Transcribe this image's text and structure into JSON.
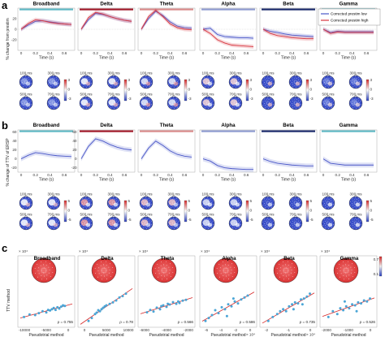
{
  "panel_labels": [
    "a",
    "b",
    "c"
  ],
  "band_titles": [
    "Broadband",
    "Delta",
    "Theta",
    "Alpha",
    "Beta",
    "Gamma"
  ],
  "band_colors": {
    "Broadband": "#5fb8c4",
    "Delta": "#a11a2a",
    "Theta": "#d98a8a",
    "Alpha": "#8e9bd0",
    "Beta": "#1b2a6b",
    "Gamma": "#5fb8c4"
  },
  "colors": {
    "blue": "#4a57c8",
    "red": "#d8363f",
    "dot": "#4aa5d6",
    "fit": "#d62828"
  },
  "row_a": {
    "ylabel": "% change from prestim",
    "xlabel": "Time (s)",
    "legend": [
      "Corrected prestim low",
      "Corrected prestim high"
    ],
    "yticks": [
      "20",
      "0",
      "-20"
    ],
    "xticks": [
      "0",
      "0.2",
      "0.4",
      "0.6"
    ],
    "topo_times": [
      "100 ms",
      "300 ms",
      "500 ms",
      "700 ms"
    ],
    "colorbar_ticks": [
      "3",
      "0",
      "-3"
    ]
  },
  "row_b": {
    "ylabel": "% change of TTV of ERSP",
    "xlabel": "Time (s)",
    "yticks": [
      "60",
      "40",
      "20",
      "0",
      "-20"
    ],
    "xticks": [
      "0",
      "0.2",
      "0.4",
      "0.6"
    ],
    "topo_times": [
      "100 ms",
      "300 ms",
      "500 ms",
      "700 ms"
    ],
    "colorbar_ticks": [
      "5",
      "0",
      "-5"
    ]
  },
  "row_c": {
    "ylabel": "TTV method",
    "xlabel": "Pseudotrial method",
    "colorbar_ticks": [
      "0.7",
      "0.1"
    ],
    "panels": [
      {
        "exp": "× 10⁴",
        "rho": "ρ = 0.755",
        "xticks": [
          "-10000",
          "-5000",
          "0"
        ],
        "xexp": ""
      },
      {
        "exp": "× 10⁴",
        "rho": "ρ = 0.78",
        "xticks": [
          "0",
          "5000",
          "10000"
        ],
        "xexp": ""
      },
      {
        "exp": "× 10⁴",
        "rho": "ρ = 0.566",
        "xticks": [
          "-6000",
          "-4000",
          "-2000"
        ],
        "xexp": ""
      },
      {
        "exp": "× 10⁴",
        "rho": "ρ = 0.586",
        "xticks": [
          "-6",
          "-4",
          "-2",
          "0"
        ],
        "xexp": "× 10⁴"
      },
      {
        "exp": "× 10⁴",
        "rho": "ρ = 0.735",
        "xticks": [
          "-2",
          "-1",
          "0"
        ],
        "xexp": "× 10⁴"
      },
      {
        "exp": "× 10⁴",
        "rho": "ρ = 0.526",
        "xticks": [
          "-2000",
          "-1000",
          "0"
        ],
        "xexp": ""
      }
    ]
  },
  "chart_data": [
    {
      "type": "line",
      "panel": "a",
      "x": [
        0,
        0.1,
        0.2,
        0.3,
        0.4,
        0.5,
        0.6,
        0.7
      ],
      "series": [
        {
          "name": "Corrected prestim low",
          "band": "Broadband",
          "values": [
            0,
            8,
            15,
            16,
            14,
            12,
            10,
            9
          ]
        },
        {
          "name": "Corrected prestim high",
          "band": "Broadband",
          "values": [
            0,
            11,
            18,
            16,
            13,
            11,
            10,
            9
          ]
        },
        {
          "name": "Corrected prestim low",
          "band": "Delta",
          "values": [
            0,
            18,
            30,
            28,
            24,
            20,
            17,
            15
          ]
        },
        {
          "name": "Corrected prestim high",
          "band": "Delta",
          "values": [
            0,
            22,
            32,
            29,
            24,
            20,
            17,
            15
          ]
        },
        {
          "name": "Corrected prestim low",
          "band": "Theta",
          "values": [
            0,
            20,
            34,
            26,
            14,
            6,
            3,
            2
          ]
        },
        {
          "name": "Corrected prestim high",
          "band": "Theta",
          "values": [
            0,
            24,
            36,
            24,
            10,
            3,
            0,
            -1
          ]
        },
        {
          "name": "Corrected prestim low",
          "band": "Alpha",
          "values": [
            0,
            2,
            -10,
            -14,
            -15,
            -16,
            -16,
            -17
          ]
        },
        {
          "name": "Corrected prestim high",
          "band": "Alpha",
          "values": [
            0,
            -8,
            -20,
            -26,
            -30,
            -31,
            -32,
            -33
          ]
        },
        {
          "name": "Corrected prestim low",
          "band": "Beta",
          "values": [
            0,
            -4,
            -6,
            -9,
            -11,
            -12,
            -13,
            -14
          ]
        },
        {
          "name": "Corrected prestim high",
          "band": "Beta",
          "values": [
            0,
            -8,
            -12,
            -14,
            -16,
            -17,
            -18,
            -18
          ]
        },
        {
          "name": "Corrected prestim low",
          "band": "Gamma",
          "values": [
            0,
            -6,
            -4,
            -5,
            -5,
            -5,
            -5,
            -5
          ]
        },
        {
          "name": "Corrected prestim high",
          "band": "Gamma",
          "values": [
            0,
            -8,
            -5,
            -6,
            -6,
            -6,
            -6,
            -6
          ]
        }
      ],
      "xlabel": "Time (s)",
      "ylabel": "% change from prestim"
    },
    {
      "type": "line",
      "panel": "b",
      "x": [
        0,
        0.1,
        0.2,
        0.3,
        0.4,
        0.5,
        0.6,
        0.7
      ],
      "series": [
        {
          "band": "Broadband",
          "values": [
            0,
            8,
            14,
            12,
            9,
            7,
            6,
            5
          ]
        },
        {
          "band": "Delta",
          "values": [
            0,
            28,
            45,
            40,
            32,
            26,
            22,
            20
          ]
        },
        {
          "band": "Theta",
          "values": [
            0,
            24,
            40,
            30,
            18,
            10,
            6,
            4
          ]
        },
        {
          "band": "Alpha",
          "values": [
            0,
            -5,
            -15,
            -20,
            -22,
            -23,
            -24,
            -24
          ]
        },
        {
          "band": "Beta",
          "values": [
            0,
            -6,
            -10,
            -12,
            -14,
            -15,
            -16,
            -16
          ]
        },
        {
          "band": "Gamma",
          "values": [
            0,
            -10,
            -12,
            -14,
            -14,
            -14,
            -14,
            -14
          ]
        }
      ],
      "xlabel": "Time (s)",
      "ylabel": "% change of TTV of ERSP"
    },
    {
      "type": "scatter",
      "panel": "c",
      "panels": [
        {
          "band": "Broadband",
          "xlim": [
            -12000,
            2000
          ],
          "ylim": [
            -2,
            4
          ],
          "rho": 0.755,
          "points": [
            [
              -11000,
              -0.8
            ],
            [
              -9500,
              -0.4
            ],
            [
              -8000,
              -0.5
            ],
            [
              -7000,
              -0.2
            ],
            [
              -6000,
              0.1
            ],
            [
              -5000,
              -0.1
            ],
            [
              -4500,
              0.3
            ],
            [
              -4000,
              0.2
            ],
            [
              -3500,
              0.4
            ],
            [
              -3000,
              0.6
            ],
            [
              -2500,
              0.3
            ],
            [
              -2000,
              0.7
            ],
            [
              -1500,
              0.5
            ],
            [
              -1000,
              0.8
            ],
            [
              -500,
              1.0
            ],
            [
              0,
              0.9
            ]
          ]
        },
        {
          "band": "Delta",
          "xlim": [
            -2000,
            14000
          ],
          "ylim": [
            -2,
            6
          ],
          "rho": 0.78,
          "points": [
            [
              500,
              -1.2
            ],
            [
              1500,
              -0.6
            ],
            [
              2500,
              0.2
            ],
            [
              3000,
              0.5
            ],
            [
              3500,
              1.0
            ],
            [
              4000,
              0.8
            ],
            [
              4500,
              1.2
            ],
            [
              5000,
              1.5
            ],
            [
              5500,
              1.8
            ],
            [
              6000,
              2.0
            ],
            [
              7000,
              2.3
            ],
            [
              8000,
              2.6
            ],
            [
              9000,
              3.0
            ],
            [
              10000,
              3.6
            ],
            [
              11000,
              3.9
            ],
            [
              12000,
              4.4
            ]
          ]
        },
        {
          "band": "Theta",
          "xlim": [
            -8000,
            0
          ],
          "ylim": [
            -1,
            4
          ],
          "rho": 0.566,
          "points": [
            [
              -7000,
              0.6
            ],
            [
              -6500,
              0.9
            ],
            [
              -6000,
              0.7
            ],
            [
              -5500,
              1.2
            ],
            [
              -5000,
              1.0
            ],
            [
              -4800,
              1.4
            ],
            [
              -4500,
              1.5
            ],
            [
              -4000,
              1.3
            ],
            [
              -3800,
              1.7
            ],
            [
              -3500,
              1.6
            ],
            [
              -3000,
              1.9
            ],
            [
              -2500,
              1.7
            ],
            [
              -2200,
              2.0
            ],
            [
              -2000,
              1.8
            ],
            [
              -1500,
              2.1
            ],
            [
              -1000,
              2.2
            ]
          ]
        },
        {
          "band": "Alpha",
          "xlim": [
            -7,
            1
          ],
          "ylim": [
            -3,
            1
          ],
          "rho": 0.586,
          "points": [
            [
              -6.5,
              -2.6
            ],
            [
              -6,
              -2.3
            ],
            [
              -5.5,
              -2.0
            ],
            [
              -5,
              -1.5
            ],
            [
              -4.5,
              -1.8
            ],
            [
              -4,
              -1.2
            ],
            [
              -3.5,
              -1.4
            ],
            [
              -3,
              -0.9
            ],
            [
              -2.5,
              -1.1
            ],
            [
              -2,
              -0.6
            ],
            [
              -1.5,
              -0.8
            ],
            [
              -1,
              -0.4
            ],
            [
              -0.5,
              -0.2
            ],
            [
              0,
              0.0
            ],
            [
              -3.2,
              -2.1
            ],
            [
              -2.2,
              -0.3
            ]
          ]
        },
        {
          "band": "Beta",
          "xlim": [
            -3,
            0.5
          ],
          "ylim": [
            -3,
            1
          ],
          "rho": 0.735,
          "points": [
            [
              -2.6,
              -2.6
            ],
            [
              -2.3,
              -2.2
            ],
            [
              -2.0,
              -1.9
            ],
            [
              -1.8,
              -1.6
            ],
            [
              -1.6,
              -1.4
            ],
            [
              -1.4,
              -1.6
            ],
            [
              -1.2,
              -1.1
            ],
            [
              -1.0,
              -0.9
            ],
            [
              -0.8,
              -0.7
            ],
            [
              -0.6,
              -0.8
            ],
            [
              -0.4,
              -0.4
            ],
            [
              -0.2,
              -0.3
            ],
            [
              0,
              -0.1
            ],
            [
              0.2,
              0.2
            ],
            [
              -0.9,
              -1.4
            ],
            [
              -0.3,
              -0.9
            ]
          ]
        },
        {
          "band": "Gamma",
          "xlim": [
            -3000,
            500
          ],
          "ylim": [
            -2,
            2
          ],
          "rho": 0.526,
          "points": [
            [
              -2600,
              -1.2
            ],
            [
              -2300,
              -0.6
            ],
            [
              -2000,
              -0.9
            ],
            [
              -1800,
              -0.3
            ],
            [
              -1600,
              -0.5
            ],
            [
              -1400,
              -0.1
            ],
            [
              -1200,
              -0.3
            ],
            [
              -1000,
              0.1
            ],
            [
              -800,
              0.0
            ],
            [
              -600,
              0.3
            ],
            [
              -400,
              0.2
            ],
            [
              -200,
              0.5
            ],
            [
              0,
              0.4
            ],
            [
              200,
              0.7
            ],
            [
              -1500,
              0.4
            ],
            [
              -700,
              -0.6
            ]
          ]
        }
      ],
      "xlabel": "Pseudotrial method",
      "ylabel": "TTV method"
    }
  ]
}
